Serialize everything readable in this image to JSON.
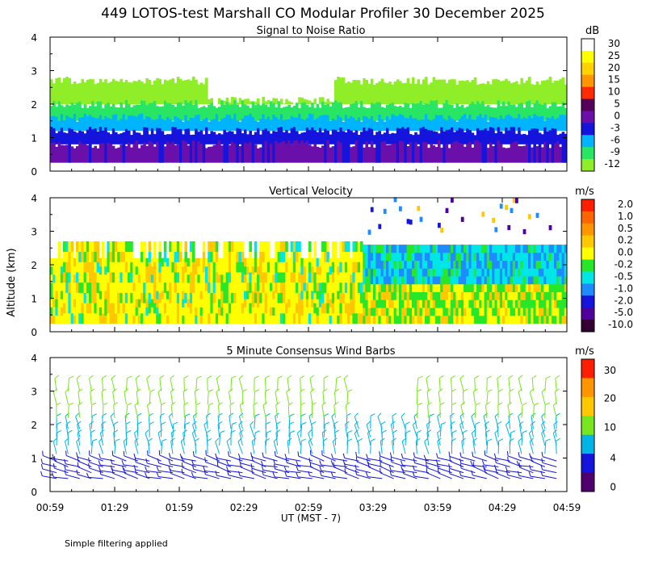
{
  "title": "449 LOTOS-test Marshall CO Modular Profiler 30 December 2025",
  "ylabel": "Altitude (km)",
  "xlabel": "UT  (MST - 7)",
  "footer": "Simple filtering applied",
  "x_ticks": [
    "00:59",
    "01:29",
    "01:59",
    "02:29",
    "02:59",
    "03:29",
    "03:59",
    "04:29",
    "04:59"
  ],
  "y_ticks": [
    "0",
    "1",
    "2",
    "3",
    "4"
  ],
  "chart_data": [
    {
      "type": "heatmap",
      "name": "snr",
      "title": "Signal to Noise Ratio",
      "units": "dB",
      "ylim": [
        0,
        4
      ],
      "x_range": [
        "00:59",
        "04:59"
      ],
      "colorbar_labels": [
        "30",
        "25",
        "20",
        "15",
        "10",
        "5",
        "0",
        "-3",
        "-6",
        "-9",
        "-12"
      ],
      "colors": [
        "#ffffff",
        "#ffff00",
        "#ffd200",
        "#ff9600",
        "#ff2a00",
        "#55005a",
        "#6a0faa",
        "#1414dc",
        "#00b4ff",
        "#28e664",
        "#90ee28"
      ],
      "bands": [
        {
          "label": "-12",
          "color": "#90ee28",
          "range_km": [
            2.0,
            2.7
          ]
        },
        {
          "label": "-9",
          "color": "#28e664",
          "range_km": [
            1.5,
            2.0
          ]
        },
        {
          "label": "-6",
          "color": "#00b4ff",
          "range_km": [
            1.2,
            1.6
          ]
        },
        {
          "label": "-3",
          "color": "#1414dc",
          "range_km": [
            0.8,
            1.2
          ]
        },
        {
          "label": "0",
          "color": "#6a0faa",
          "range_km": [
            0.25,
            0.8
          ]
        }
      ]
    },
    {
      "type": "heatmap",
      "name": "vertical-velocity",
      "title": "Vertical Velocity",
      "units": "m/s",
      "ylim": [
        0,
        4
      ],
      "colorbar_labels": [
        "2.0",
        "1.0",
        "0.5",
        "0.2",
        "0.0",
        "-0.2",
        "-0.5",
        "-1.0",
        "-2.0",
        "-5.0",
        "-10.0"
      ],
      "colors": [
        "#ff1e00",
        "#ff6400",
        "#ff9600",
        "#ffc800",
        "#ffff00",
        "#28e628",
        "#00e6e6",
        "#1e8cff",
        "#1414dc",
        "#50009b",
        "#320032"
      ],
      "regions": [
        {
          "time": [
            "00:59",
            "03:24"
          ],
          "range_km": [
            0.25,
            2.7
          ],
          "dominant": "0.0"
        },
        {
          "time": [
            "03:24",
            "04:59"
          ],
          "range_km": [
            1.5,
            2.6
          ],
          "dominant": "-0.5"
        },
        {
          "time": [
            "03:24",
            "04:59"
          ],
          "range_km": [
            0.25,
            1.5
          ],
          "dominant": "-0.2"
        }
      ]
    },
    {
      "type": "wind-barbs",
      "name": "wind-barbs",
      "title": "5 Minute Consensus Wind Barbs",
      "units": "m/s",
      "ylim": [
        0,
        4
      ],
      "colorbar_labels": [
        "30",
        "20",
        "10",
        "4",
        "0"
      ],
      "colors": [
        "#ff1e00",
        "#ff9600",
        "#ffc800",
        "#78e61e",
        "#00b4e6",
        "#1414dc",
        "#50006e"
      ],
      "layers": [
        {
          "range_km": [
            0.3,
            1.0
          ],
          "speed_ms": 3,
          "color": "#1414dc"
        },
        {
          "range_km": [
            1.0,
            2.0
          ],
          "speed_ms": 7,
          "color": "#00b4e6"
        },
        {
          "range_km": [
            2.0,
            3.2
          ],
          "speed_ms": 12,
          "color": "#78e61e"
        }
      ]
    }
  ]
}
